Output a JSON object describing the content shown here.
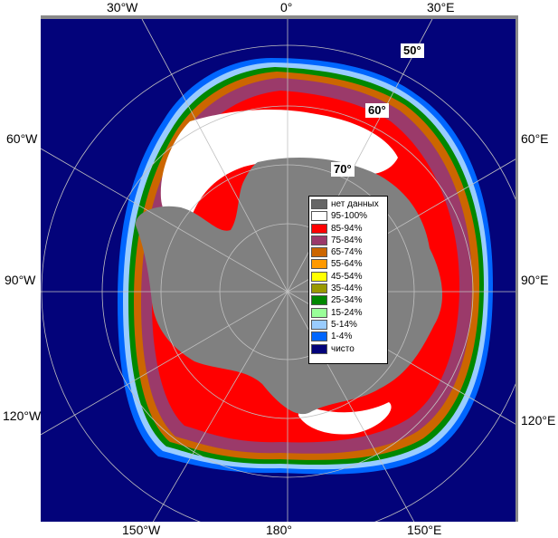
{
  "lon_labels": {
    "w30": "30°W",
    "zero": "0°",
    "e30": "30°E",
    "w60": "60°W",
    "e60": "60°E",
    "w90": "90°W",
    "e90": "90°E",
    "w120": "120°W",
    "e120": "120°E",
    "w150": "150°W",
    "e180": "180°",
    "e150": "150°E"
  },
  "lat_labels": {
    "l50": "50°",
    "l60": "60°",
    "l70": "70°"
  },
  "legend": [
    {
      "label": "нет данных",
      "color": "#666666"
    },
    {
      "label": "95-100%",
      "color": "#ffffff"
    },
    {
      "label": "85-94%",
      "color": "#ff0000"
    },
    {
      "label": "75-84%",
      "color": "#9b3a6a"
    },
    {
      "label": "65-74%",
      "color": "#cc6600"
    },
    {
      "label": "55-64%",
      "color": "#ff9900"
    },
    {
      "label": "45-54%",
      "color": "#ffff00"
    },
    {
      "label": "35-44%",
      "color": "#999900"
    },
    {
      "label": "25-34%",
      "color": "#008800"
    },
    {
      "label": "15-24%",
      "color": "#99ff99"
    },
    {
      "label": "5-14%",
      "color": "#99ccff"
    },
    {
      "label": "1-4%",
      "color": "#0066ff"
    },
    {
      "label": "чисто",
      "color": "#03037a"
    }
  ],
  "colors": {
    "ocean": "#03037a",
    "land": "#808080",
    "grid": "#c0c0c0"
  }
}
